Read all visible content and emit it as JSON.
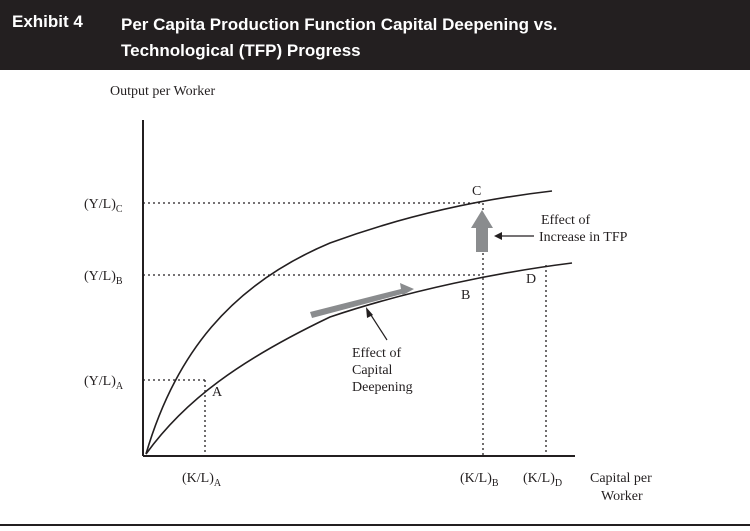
{
  "header": {
    "exhibit": "Exhibit 4",
    "title_line1": "Per Capita Production Function Capital Deepening vs.",
    "title_line2": "Technological (TFP) Progress"
  },
  "diagram": {
    "y_axis_label": "Output per Worker",
    "x_axis_label_line1": "Capital per",
    "x_axis_label_line2": "Worker",
    "y_ticks": [
      {
        "base": "(Y/L)",
        "sub": "C"
      },
      {
        "base": "(Y/L)",
        "sub": "B"
      },
      {
        "base": "(Y/L)",
        "sub": "A"
      }
    ],
    "x_ticks": [
      {
        "base": "(K/L)",
        "sub": "A"
      },
      {
        "base": "(K/L)",
        "sub": "B"
      },
      {
        "base": "(K/L)",
        "sub": "D"
      }
    ],
    "points": {
      "a": "A",
      "b": "B",
      "c": "C",
      "d": "D"
    },
    "tfp_annotation": [
      "Effect of",
      "Increase in TFP"
    ],
    "deepening_annotation": [
      "Effect of",
      "Capital",
      "Deepening"
    ],
    "colors": {
      "curve": "#231f20",
      "arrow_fill": "#8a8c8e",
      "header_bg": "#231f20"
    }
  }
}
